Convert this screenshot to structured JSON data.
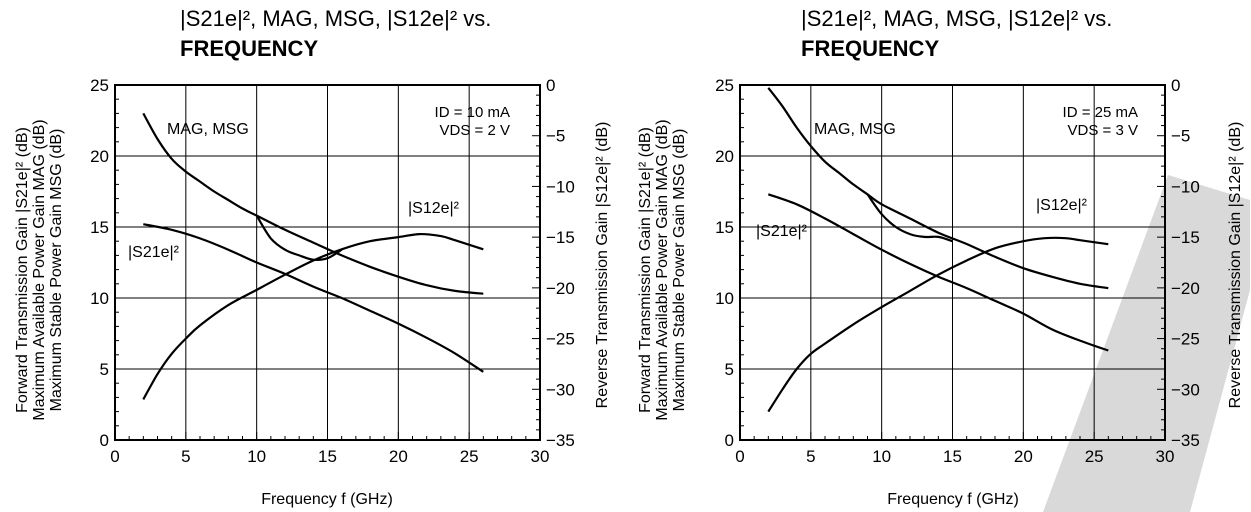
{
  "watermark_color": "#d9d9d9",
  "chart_data": [
    {
      "type": "line",
      "title_line1": "|S21e|², MAG, MSG, |S12e|² vs.",
      "title_line2": "FREQUENCY",
      "xlabel": "Frequency  f (GHz)",
      "ylabel_left": [
        "Forward Transmission Gain  |S21e|² (dB)",
        "Maximum Available Power Gain  MAG (dB)",
        "Maximum Stable Power Gain  MSG (dB)"
      ],
      "ylabel_right": "Reverse Transmission Gain  |S12e|² (dB)",
      "xlim": [
        0,
        30
      ],
      "ylim_left": [
        0,
        25
      ],
      "ylim_right": [
        -35,
        0
      ],
      "x_ticks": [
        "0",
        "5",
        "10",
        "15",
        "20",
        "25",
        "30"
      ],
      "y_left_ticks": [
        "0",
        "5",
        "10",
        "15",
        "20",
        "25"
      ],
      "y_right_ticks": [
        "-35",
        "-30",
        "-25",
        "-20",
        "-15",
        "-10",
        "-5",
        "0"
      ],
      "grid": true,
      "conditions": [
        "ID = 10 mA",
        "VDS = 2 V"
      ],
      "curve_labels": {
        "mag": "MAG, MSG",
        "s21": "|S21e|²",
        "s12": "|S12e|²"
      },
      "series": [
        {
          "name": "MAG, MSG",
          "axis": "left",
          "x": [
            2,
            3,
            4,
            5,
            6,
            7,
            8,
            9,
            10
          ],
          "y": [
            23.0,
            21.2,
            19.8,
            18.9,
            18.2,
            17.5,
            16.9,
            16.3,
            15.8
          ]
        },
        {
          "name": "MAG, MSG",
          "axis": "left",
          "x": [
            10,
            11,
            12,
            13,
            14,
            15,
            16
          ],
          "y": [
            15.8,
            14.2,
            13.4,
            13.0,
            12.7,
            12.8,
            13.4
          ]
        },
        {
          "name": "MAG, MSG",
          "axis": "left",
          "x": [
            10,
            12,
            14,
            16,
            18,
            20,
            22,
            24,
            26
          ],
          "y": [
            15.8,
            14.8,
            13.9,
            13.0,
            12.2,
            11.5,
            10.9,
            10.5,
            10.3
          ]
        },
        {
          "name": "|S21e|²",
          "axis": "left",
          "x": [
            2,
            4,
            6,
            8,
            10,
            12,
            14,
            16,
            18,
            20,
            22,
            24,
            26
          ],
          "y": [
            15.2,
            14.8,
            14.2,
            13.4,
            12.5,
            11.7,
            10.8,
            10.0,
            9.1,
            8.2,
            7.2,
            6.1,
            4.8
          ]
        },
        {
          "name": "|S12e|²",
          "axis": "right",
          "x": [
            2,
            3,
            4,
            5,
            6,
            8,
            10,
            12,
            14,
            16,
            18,
            20,
            21.5,
            23,
            24,
            26
          ],
          "y": [
            -31,
            -28.5,
            -26.5,
            -25,
            -23.7,
            -21.7,
            -20.2,
            -18.7,
            -17.3,
            -16.2,
            -15.4,
            -15.0,
            -14.7,
            -14.9,
            -15.3,
            -16.2
          ]
        }
      ]
    },
    {
      "type": "line",
      "title_line1": "|S21e|², MAG, MSG, |S12e|² vs.",
      "title_line2": "FREQUENCY",
      "xlabel": "Frequency  f (GHz)",
      "ylabel_left": [
        "Forward Transmission Gain  |S21e|² (dB)",
        "Maximum Available Power Gain  MAG (dB)",
        "Maximum Stable Power Gain  MSG (dB)"
      ],
      "ylabel_right": "Reverse Transmission Gain  |S12e|² (dB)",
      "xlim": [
        0,
        30
      ],
      "ylim_left": [
        0,
        25
      ],
      "ylim_right": [
        -35,
        0
      ],
      "x_ticks": [
        "0",
        "5",
        "10",
        "15",
        "20",
        "25",
        "30"
      ],
      "y_left_ticks": [
        "0",
        "5",
        "10",
        "15",
        "20",
        "25"
      ],
      "y_right_ticks": [
        "-35",
        "-30",
        "-25",
        "-20",
        "-15",
        "-10",
        "-5",
        "0"
      ],
      "grid": true,
      "conditions": [
        "ID = 25 mA",
        "VDS = 3 V"
      ],
      "curve_labels": {
        "mag": "MAG, MSG",
        "s21": "|S21e|²",
        "s12": "|S12e|²"
      },
      "series": [
        {
          "name": "MAG, MSG",
          "axis": "left",
          "x": [
            2,
            3,
            4,
            5,
            6,
            7,
            8,
            9
          ],
          "y": [
            24.8,
            23.5,
            22.0,
            20.7,
            19.6,
            18.8,
            18.0,
            17.3
          ]
        },
        {
          "name": "MAG, MSG",
          "axis": "left",
          "x": [
            9,
            10,
            11,
            12,
            13,
            14,
            15
          ],
          "y": [
            17.3,
            15.9,
            15.0,
            14.5,
            14.3,
            14.3,
            14.0
          ]
        },
        {
          "name": "MAG, MSG",
          "axis": "left",
          "x": [
            9,
            10,
            12,
            14,
            16,
            18,
            20,
            22,
            24,
            26
          ],
          "y": [
            17.3,
            16.6,
            15.6,
            14.6,
            13.8,
            12.9,
            12.1,
            11.5,
            11.0,
            10.7
          ]
        },
        {
          "name": "|S21e|²",
          "axis": "left",
          "x": [
            2,
            4,
            6,
            8,
            10,
            12,
            14,
            16,
            18,
            20,
            22,
            24,
            26
          ],
          "y": [
            17.3,
            16.6,
            15.6,
            14.5,
            13.4,
            12.4,
            11.5,
            10.7,
            9.8,
            8.9,
            7.8,
            7.0,
            6.3
          ]
        },
        {
          "name": "|S12e|²",
          "axis": "right",
          "x": [
            2,
            3,
            4,
            5,
            6,
            8,
            10,
            12,
            14,
            16,
            18,
            20,
            21.5,
            23,
            24,
            26
          ],
          "y": [
            -32.2,
            -30,
            -28,
            -26.5,
            -25.5,
            -23.6,
            -21.9,
            -20.3,
            -18.7,
            -17.3,
            -16.1,
            -15.4,
            -15.1,
            -15.1,
            -15.3,
            -15.7
          ]
        }
      ]
    }
  ]
}
